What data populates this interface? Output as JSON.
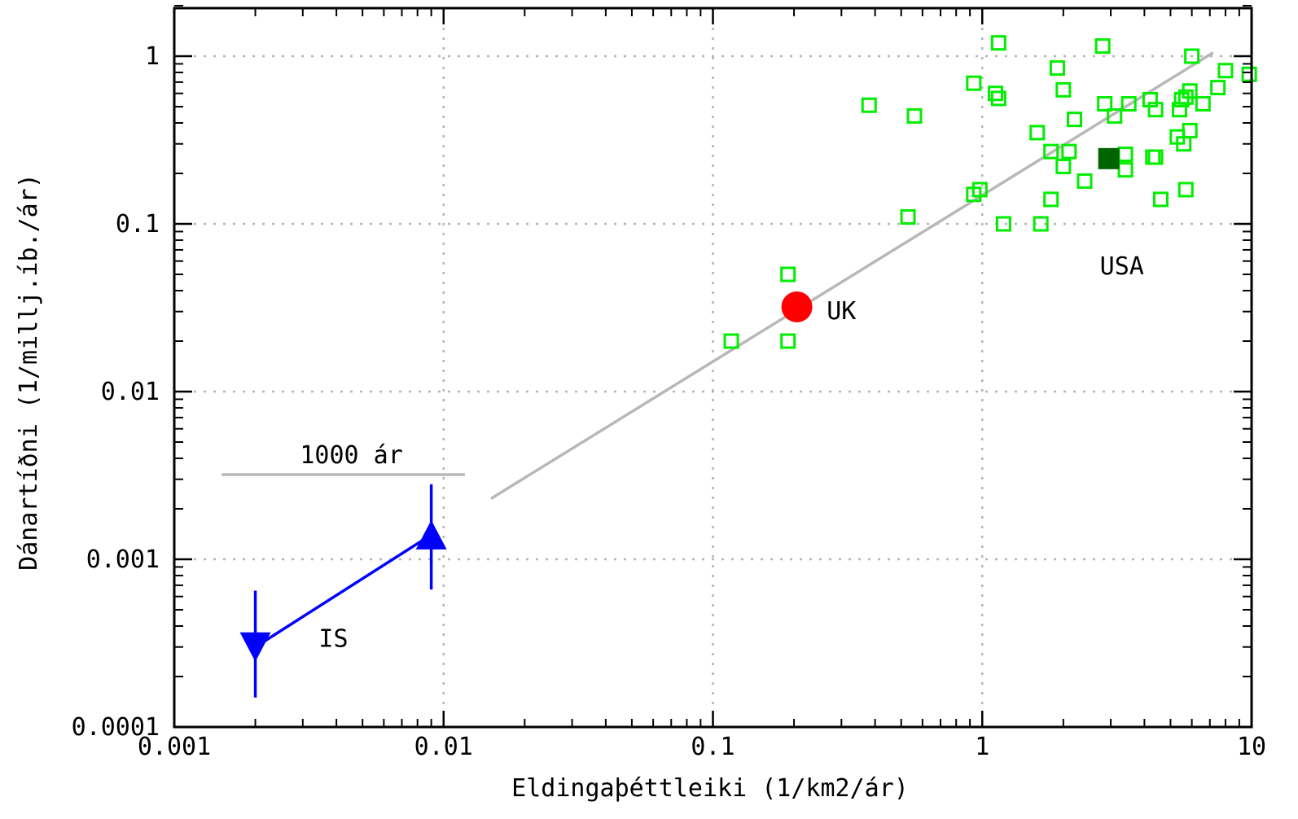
{
  "chart_data": {
    "type": "scatter",
    "xlabel": "Eldingaþéttleiki (1/km2/ár)",
    "ylabel": "Dánartíðni (1/millj.íb./ár)",
    "x_scale": "log",
    "y_scale": "log",
    "xlim": [
      0.001,
      10
    ],
    "ylim": [
      0.0001,
      2
    ],
    "grid": true,
    "x_ticks": [
      {
        "value": 0.001,
        "label": "0.001"
      },
      {
        "value": 0.01,
        "label": "0.01"
      },
      {
        "value": 0.1,
        "label": "0.1"
      },
      {
        "value": 1,
        "label": "1"
      },
      {
        "value": 10,
        "label": "10"
      }
    ],
    "y_ticks": [
      {
        "value": 0.0001,
        "label": "0.0001"
      },
      {
        "value": 0.001,
        "label": "0.001"
      },
      {
        "value": 0.01,
        "label": "0.01"
      },
      {
        "value": 0.1,
        "label": "0.1"
      },
      {
        "value": 1,
        "label": "1"
      }
    ],
    "series": [
      {
        "id": "usa_states",
        "marker": "open-square",
        "color": "#00ee00",
        "points": [
          [
            1.15,
            1.2
          ],
          [
            2.8,
            1.15
          ],
          [
            6.0,
            1.0
          ],
          [
            8.0,
            0.82
          ],
          [
            9.8,
            0.78
          ],
          [
            7.5,
            0.65
          ],
          [
            1.9,
            0.85
          ],
          [
            0.93,
            0.69
          ],
          [
            1.12,
            0.6
          ],
          [
            1.15,
            0.56
          ],
          [
            2.0,
            0.63
          ],
          [
            0.38,
            0.51
          ],
          [
            0.56,
            0.44
          ],
          [
            2.85,
            0.52
          ],
          [
            3.5,
            0.52
          ],
          [
            4.2,
            0.55
          ],
          [
            4.4,
            0.48
          ],
          [
            5.5,
            0.55
          ],
          [
            5.7,
            0.57
          ],
          [
            5.9,
            0.62
          ],
          [
            6.6,
            0.52
          ],
          [
            5.4,
            0.48
          ],
          [
            3.1,
            0.44
          ],
          [
            2.2,
            0.42
          ],
          [
            1.6,
            0.35
          ],
          [
            5.9,
            0.36
          ],
          [
            5.3,
            0.33
          ],
          [
            5.6,
            0.3
          ],
          [
            1.8,
            0.27
          ],
          [
            2.1,
            0.27
          ],
          [
            3.4,
            0.26
          ],
          [
            4.4,
            0.25
          ],
          [
            4.3,
            0.25
          ],
          [
            3.4,
            0.21
          ],
          [
            2.0,
            0.22
          ],
          [
            2.4,
            0.18
          ],
          [
            0.93,
            0.15
          ],
          [
            0.98,
            0.16
          ],
          [
            1.8,
            0.14
          ],
          [
            4.6,
            0.14
          ],
          [
            5.7,
            0.16
          ],
          [
            1.2,
            0.1
          ],
          [
            1.65,
            0.1
          ],
          [
            0.53,
            0.11
          ],
          [
            0.19,
            0.05
          ],
          [
            0.117,
            0.02
          ],
          [
            0.19,
            0.02
          ]
        ]
      },
      {
        "id": "usa_mean",
        "label": "USA",
        "marker": "filled-square",
        "color": "#006400",
        "points": [
          [
            2.95,
            0.245
          ]
        ]
      },
      {
        "id": "uk",
        "label": "UK",
        "marker": "filled-circle",
        "color": "#ff0000",
        "points": [
          [
            0.205,
            0.032
          ]
        ]
      },
      {
        "id": "iceland",
        "label": "IS",
        "marker": "triangle",
        "color": "#0000ff",
        "points": [
          {
            "x": 0.002,
            "y": 0.0003,
            "direction": "down",
            "err_low": 0.00015,
            "err_high": 0.00065
          },
          {
            "x": 0.009,
            "y": 0.0014,
            "direction": "up",
            "err_low": 0.00066,
            "err_high": 0.0028
          }
        ]
      }
    ],
    "fit_line": {
      "color": "#b8b8b8",
      "x": [
        0.015,
        7.2
      ],
      "y": [
        0.0023,
        1.05
      ]
    },
    "reference_line": {
      "label": "1000 ár",
      "color": "#b8b8b8",
      "y": 0.0032,
      "x": [
        0.0015,
        0.012
      ]
    },
    "annotations": [
      {
        "text": "USA",
        "x": 3.3,
        "y": 0.05
      },
      {
        "text": "UK",
        "x": 0.3,
        "y": 0.027
      },
      {
        "text": "IS",
        "x": 0.0039,
        "y": 0.0003
      }
    ]
  }
}
